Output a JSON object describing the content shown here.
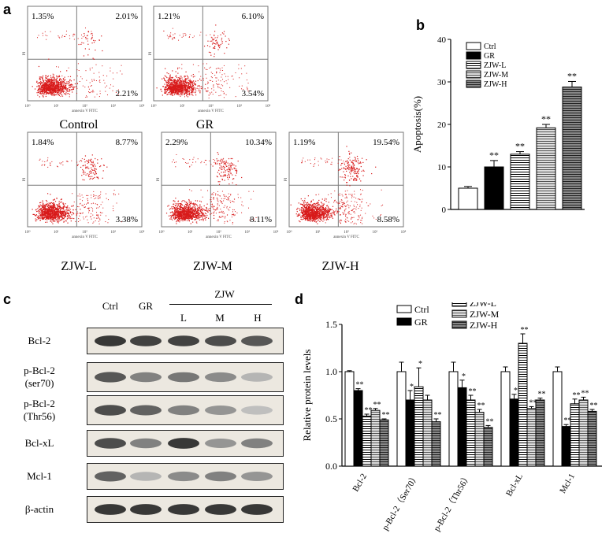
{
  "panel_letters": [
    "a",
    "b",
    "c",
    "d"
  ],
  "facs": {
    "panels": [
      {
        "name": "Control",
        "q1": "1.35%",
        "q2": "2.01%",
        "q4": "2.21%"
      },
      {
        "name": "GR",
        "q1": "1.21%",
        "q2": "6.10%",
        "q4": "3.54%"
      },
      {
        "name": "ZJW-L",
        "q1": "1.84%",
        "q2": "8.77%",
        "q4": "3.38%"
      },
      {
        "name": "ZJW-M",
        "q1": "2.29%",
        "q2": "10.34%",
        "q4": "8.11%"
      },
      {
        "name": "ZJW-H",
        "q1": "1.19%",
        "q2": "19.54%",
        "q4": "8.58%"
      }
    ],
    "x_axis_label": "annexin V FITC",
    "y_axis_label": "PI",
    "ticks": [
      "10⁰",
      "10¹",
      "10²",
      "10³",
      "10⁴"
    ],
    "colors": {
      "dots": "#d81b1b",
      "gate": "#7a7a7a"
    }
  },
  "western": {
    "lanes": [
      "Ctrl",
      "GR",
      "L",
      "M",
      "H"
    ],
    "group_label": "ZJW",
    "rows": [
      {
        "label": "Bcl-2",
        "intensity": [
          0.95,
          0.9,
          0.9,
          0.85,
          0.8
        ]
      },
      {
        "label": "p-Bcl-2\n(ser70)",
        "intensity": [
          0.8,
          0.6,
          0.65,
          0.55,
          0.35
        ]
      },
      {
        "label": "p-Bcl-2\n(Thr56)",
        "intensity": [
          0.85,
          0.75,
          0.6,
          0.5,
          0.3
        ]
      },
      {
        "label": "Bcl-xL",
        "intensity": [
          0.85,
          0.6,
          0.95,
          0.5,
          0.6
        ]
      },
      {
        "label": "Mcl-1",
        "intensity": [
          0.75,
          0.35,
          0.55,
          0.6,
          0.5
        ]
      },
      {
        "label": "β-actin",
        "intensity": [
          0.95,
          0.95,
          0.95,
          0.95,
          0.95
        ]
      }
    ]
  },
  "chart_data": [
    {
      "type": "bar",
      "panel": "b",
      "ylabel": "Apoptosis(%)",
      "ylim": [
        0,
        40
      ],
      "yticks": [
        0,
        10,
        20,
        30,
        40
      ],
      "categories": [
        "Ctrl",
        "GR",
        "ZJW-L",
        "ZJW-M",
        "ZJW-H"
      ],
      "values": [
        5.0,
        10.0,
        13.0,
        19.2,
        28.8
      ],
      "errors": [
        0.4,
        1.5,
        0.6,
        0.8,
        1.3
      ],
      "significance": [
        "",
        "**",
        "**",
        "**",
        "**"
      ],
      "legend": [
        "Ctrl",
        "GR",
        "ZJW-L",
        "ZJW-M",
        "ZJW-H"
      ],
      "legend_position": "top-left"
    },
    {
      "type": "bar",
      "panel": "d",
      "ylabel": "Relative protein levels",
      "ylim": [
        0,
        1.5
      ],
      "yticks": [
        "0.0",
        "0.5",
        "1.0",
        "1.5"
      ],
      "categories": [
        "Bcl-2",
        "p-Bcl-2（Ser70）",
        "p-Bcl-2（Thr56）",
        "Bcl-xL",
        "Mcl-1"
      ],
      "series": [
        {
          "name": "Ctrl",
          "values": [
            1.0,
            1.0,
            1.0,
            1.0,
            1.0
          ],
          "errors": [
            0.01,
            0.1,
            0.1,
            0.05,
            0.05
          ]
        },
        {
          "name": "GR",
          "values": [
            0.8,
            0.7,
            0.83,
            0.71,
            0.42
          ],
          "errors": [
            0.02,
            0.1,
            0.08,
            0.05,
            0.02
          ]
        },
        {
          "name": "ZJW-L",
          "values": [
            0.53,
            0.84,
            0.7,
            1.3,
            0.66
          ],
          "errors": [
            0.02,
            0.2,
            0.05,
            0.1,
            0.05
          ]
        },
        {
          "name": "ZJW-M",
          "values": [
            0.59,
            0.7,
            0.57,
            0.61,
            0.7
          ],
          "errors": [
            0.02,
            0.05,
            0.03,
            0.02,
            0.03
          ]
        },
        {
          "name": "ZJW-H",
          "values": [
            0.49,
            0.47,
            0.41,
            0.7,
            0.58
          ],
          "errors": [
            0.01,
            0.03,
            0.02,
            0.02,
            0.02
          ]
        }
      ],
      "significance": [
        [
          "",
          "",
          "",
          "",
          ""
        ],
        [
          "**",
          "*",
          "*",
          "*",
          "**"
        ],
        [
          "**",
          "*",
          "**",
          "**",
          "**"
        ],
        [
          "**",
          "",
          "**",
          "**",
          "**"
        ],
        [
          "**",
          "**",
          "**",
          "**",
          "**"
        ]
      ],
      "legend_position": "top"
    }
  ]
}
